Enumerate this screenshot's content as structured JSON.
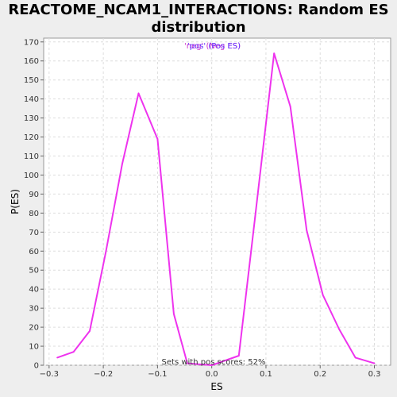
{
  "chart_data": {
    "type": "line",
    "title_line1": "REACTOME_NCAM1_INTERACTIONS: Random ES",
    "title_line2": "distribution",
    "xlabel": "ES",
    "ylabel": "P(ES)",
    "xlim": [
      -0.31,
      0.33
    ],
    "ylim": [
      0,
      172
    ],
    "xticks": [
      -0.3,
      -0.2,
      -0.1,
      0.0,
      0.1,
      0.2,
      0.3
    ],
    "xtick_labels": [
      "−0.3",
      "−0.2",
      "−0.1",
      "0.0",
      "0.1",
      "0.2",
      "0.3"
    ],
    "yticks": [
      0,
      10,
      20,
      30,
      40,
      50,
      60,
      70,
      80,
      90,
      100,
      110,
      120,
      130,
      140,
      150,
      160,
      170
    ],
    "grid": true,
    "legend_labels": [
      "'neg' (Neg ES)",
      "'pos' (Pos ES)"
    ],
    "legend_colors": [
      "#cc33cc",
      "#6633ff"
    ],
    "annotation": "Sets with pos scores: 52%",
    "series": [
      {
        "color": "#ee33ee",
        "x": [
          -0.285,
          -0.255,
          -0.225,
          -0.195,
          -0.165,
          -0.135,
          -0.1,
          -0.07,
          -0.045,
          0.0,
          0.05,
          0.08,
          0.115,
          0.145,
          0.175,
          0.205,
          0.235,
          0.265,
          0.3
        ],
        "y": [
          4,
          7,
          18,
          60,
          106,
          143,
          119,
          27,
          1,
          0,
          5,
          78,
          164,
          136,
          71,
          37,
          19,
          4,
          1
        ]
      }
    ]
  }
}
